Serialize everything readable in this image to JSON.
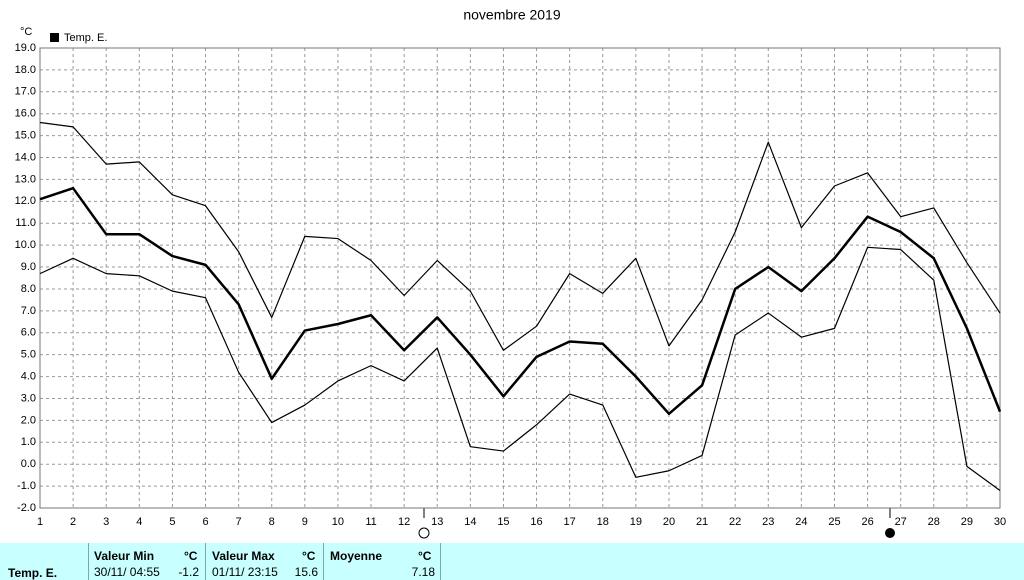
{
  "chart_data": {
    "type": "line",
    "title": "novembre 2019",
    "y_unit": "°C",
    "x": [
      1,
      2,
      3,
      4,
      5,
      6,
      7,
      8,
      9,
      10,
      11,
      12,
      13,
      14,
      15,
      16,
      17,
      18,
      19,
      20,
      21,
      22,
      23,
      24,
      25,
      26,
      27,
      28,
      29,
      30
    ],
    "xlim": [
      1,
      30
    ],
    "xticks": [
      1,
      2,
      3,
      4,
      5,
      6,
      7,
      8,
      9,
      10,
      11,
      12,
      13,
      14,
      15,
      16,
      17,
      18,
      19,
      20,
      21,
      22,
      23,
      24,
      25,
      26,
      27,
      28,
      29,
      30
    ],
    "ylim": [
      -2,
      19
    ],
    "yticks": [
      {
        "value": -2,
        "label": "-2.0"
      },
      {
        "value": -1,
        "label": "-1.0"
      },
      {
        "value": 0,
        "label": "0.0"
      },
      {
        "value": 1,
        "label": "1.0"
      },
      {
        "value": 2,
        "label": "2.0"
      },
      {
        "value": 3,
        "label": "3.0"
      },
      {
        "value": 4,
        "label": "4.0"
      },
      {
        "value": 5,
        "label": "5.0"
      },
      {
        "value": 6,
        "label": "6.0"
      },
      {
        "value": 7,
        "label": "7.0"
      },
      {
        "value": 8,
        "label": "8.0"
      },
      {
        "value": 9,
        "label": "9.0"
      },
      {
        "value": 10,
        "label": "10.0"
      },
      {
        "value": 11,
        "label": "11.0"
      },
      {
        "value": 12,
        "label": "12.0"
      },
      {
        "value": 13,
        "label": "13.0"
      },
      {
        "value": 14,
        "label": "14.0"
      },
      {
        "value": 15,
        "label": "15.0"
      },
      {
        "value": 16,
        "label": "16.0"
      },
      {
        "value": 17,
        "label": "17.0"
      },
      {
        "value": 18,
        "label": "18.0"
      },
      {
        "value": 19,
        "label": "19.0"
      }
    ],
    "grid": true,
    "series": [
      {
        "name": "Temp. E.",
        "color": "#000000",
        "values": [
          12.1,
          12.6,
          10.5,
          10.5,
          9.5,
          9.1,
          7.3,
          3.9,
          6.1,
          6.4,
          6.8,
          5.2,
          6.7,
          5.0,
          3.1,
          4.9,
          5.6,
          5.5,
          4.0,
          2.3,
          3.6,
          8.0,
          9.0,
          7.9,
          9.4,
          11.3,
          10.6,
          9.4,
          6.2,
          2.4
        ]
      },
      {
        "color": "#000000",
        "values": [
          15.6,
          15.4,
          13.7,
          13.8,
          12.3,
          11.8,
          9.7,
          6.7,
          10.4,
          10.3,
          9.3,
          7.7,
          9.3,
          7.9,
          5.2,
          6.3,
          8.7,
          7.8,
          9.4,
          5.4,
          7.5,
          10.6,
          14.7,
          10.8,
          12.7,
          13.3,
          11.3,
          11.7,
          9.2,
          6.9
        ]
      },
      {
        "color": "#000000",
        "values": [
          8.7,
          9.4,
          8.7,
          8.6,
          7.9,
          7.6,
          4.2,
          1.9,
          2.7,
          3.8,
          4.5,
          3.8,
          5.3,
          0.8,
          0.6,
          1.8,
          3.2,
          2.7,
          -0.6,
          -0.3,
          0.4,
          5.9,
          6.9,
          5.8,
          6.2,
          9.9,
          9.8,
          8.4,
          -0.1,
          -1.2
        ]
      }
    ]
  },
  "table": {
    "header": [
      "Valeur Min",
      "°C",
      "Valeur Max",
      "°C",
      "Moyenne",
      "°C"
    ],
    "row": {
      "label": "Temp. E.",
      "min_time": "30/11/ 04:55",
      "min": -1.2,
      "max_time": "01/11/ 23:15",
      "max": 15.6,
      "mean": 7.18
    }
  }
}
